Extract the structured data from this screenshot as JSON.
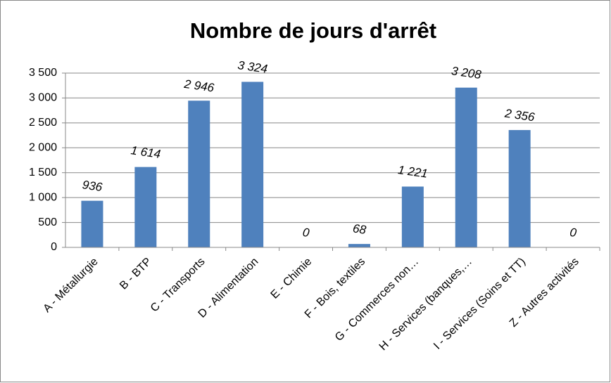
{
  "chart_data": {
    "type": "bar",
    "title": "Nombre de jours d'arrêt",
    "categories": [
      "A - Métallurgie",
      "B - BTP",
      "C - Transports",
      "D - Alimentation",
      "E - Chimie",
      "F - Bois, textiles",
      "G - Commerces non…",
      "H - Services (banques,…",
      "I - Services (Soins et TT)",
      "Z - Autres activités"
    ],
    "values": [
      936,
      1614,
      2946,
      3324,
      0,
      68,
      1221,
      3208,
      2356,
      0
    ],
    "value_labels": [
      "936",
      "1 614",
      "2 946",
      "3 324",
      "0",
      "68",
      "1 221",
      "3 208",
      "2 356",
      "0"
    ],
    "color": "#4f81bd",
    "ylim": [
      0,
      3500
    ],
    "yticks": [
      0,
      500,
      {
        "value": 1000,
        "label": "1 000"
      },
      {
        "value": 1500,
        "label": "1 500"
      },
      {
        "value": 2000,
        "label": "2 000"
      },
      {
        "value": 2500,
        "label": "2 500"
      },
      {
        "value": 3000,
        "label": "3 000"
      },
      {
        "value": 3500,
        "label": "3 500"
      }
    ],
    "grid": true
  }
}
